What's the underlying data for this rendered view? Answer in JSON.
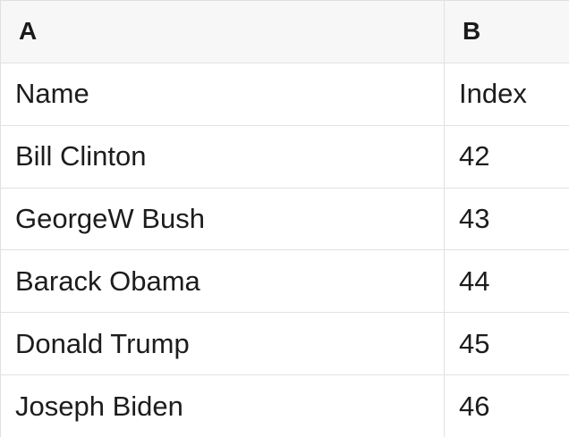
{
  "table": {
    "column_headers": [
      {
        "label": "A"
      },
      {
        "label": "B"
      }
    ],
    "rows": [
      {
        "a": "Name",
        "b": "Index"
      },
      {
        "a": "Bill Clinton",
        "b": "42"
      },
      {
        "a": "GeorgeW Bush",
        "b": "43"
      },
      {
        "a": "Barack Obama",
        "b": "44"
      },
      {
        "a": "Donald Trump",
        "b": "45"
      },
      {
        "a": "Joseph Biden",
        "b": "46"
      }
    ]
  },
  "colors": {
    "header_background": "#f7f7f7",
    "border": "#e2e2e2",
    "text": "#1c1c1c"
  }
}
